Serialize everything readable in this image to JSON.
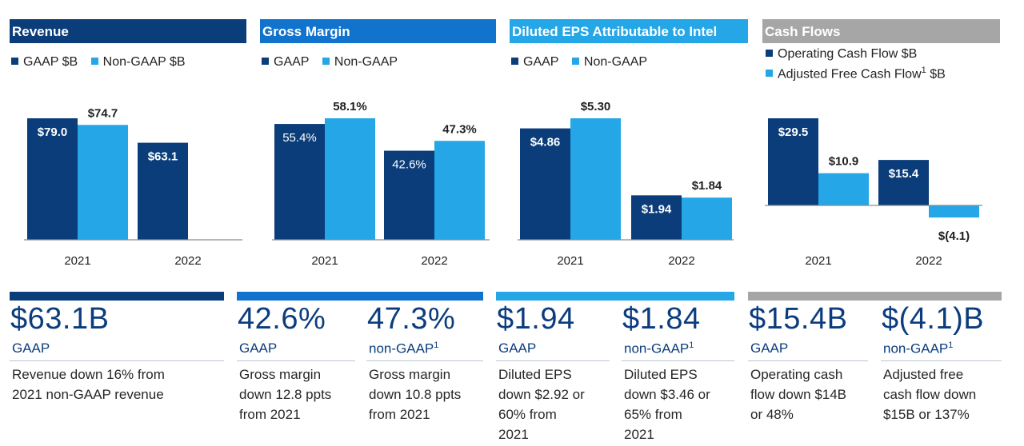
{
  "colors": {
    "gaap": "#0a3d7a",
    "nongaap": "#25a6e6",
    "header_revenue": "#0a3d7a",
    "header_margin": "#1273cc",
    "header_eps": "#25a6e6",
    "header_cash": "#a6a6a6",
    "axis": "#8c8c8c"
  },
  "panels": [
    {
      "header": "Revenue",
      "legend": [
        {
          "label": "GAAP $B"
        },
        {
          "label": "Non-GAAP $B"
        }
      ]
    },
    {
      "header": "Gross Margin",
      "legend": [
        {
          "label": "GAAP"
        },
        {
          "label": "Non-GAAP"
        }
      ]
    },
    {
      "header": "Diluted EPS Attributable to Intel",
      "legend": [
        {
          "label": "GAAP"
        },
        {
          "label": "Non-GAAP"
        }
      ]
    },
    {
      "header": "Cash Flows",
      "legend": [
        {
          "label": "Operating Cash Flow $B",
          "sup": ""
        },
        {
          "label": "Adjusted Free Cash Flow",
          "sup": "1",
          "suffix": " $B"
        }
      ]
    }
  ],
  "chart_data": [
    {
      "type": "bar",
      "title": "Revenue",
      "categories": [
        "2021",
        "2022"
      ],
      "series": [
        {
          "name": "GAAP $B",
          "values": [
            79.0,
            63.1
          ],
          "labels": [
            "$79.0",
            "$63.1"
          ]
        },
        {
          "name": "Non-GAAP $B",
          "values": [
            74.7,
            null
          ],
          "labels": [
            "$74.7",
            ""
          ]
        }
      ],
      "ylim": [
        0,
        85
      ]
    },
    {
      "type": "bar",
      "title": "Gross Margin",
      "categories": [
        "2021",
        "2022"
      ],
      "series": [
        {
          "name": "GAAP",
          "values": [
            55.4,
            42.6
          ],
          "labels": [
            "55.4%",
            "42.6%"
          ]
        },
        {
          "name": "Non-GAAP",
          "values": [
            58.1,
            47.3
          ],
          "labels": [
            "58.1%",
            "47.3%"
          ]
        }
      ],
      "ylim": [
        0,
        100
      ]
    },
    {
      "type": "bar",
      "title": "Diluted EPS Attributable to Intel",
      "categories": [
        "2021",
        "2022"
      ],
      "series": [
        {
          "name": "GAAP",
          "values": [
            4.86,
            1.94
          ],
          "labels": [
            "$4.86",
            "$1.94"
          ]
        },
        {
          "name": "Non-GAAP",
          "values": [
            5.3,
            1.84
          ],
          "labels": [
            "$5.30",
            "$1.84"
          ]
        }
      ],
      "ylim": [
        0,
        6
      ]
    },
    {
      "type": "bar",
      "title": "Cash Flows",
      "categories": [
        "2021",
        "2022"
      ],
      "series": [
        {
          "name": "Operating Cash Flow $B",
          "values": [
            29.5,
            15.4
          ],
          "labels": [
            "$29.5",
            "$15.4"
          ]
        },
        {
          "name": "Adjusted Free Cash Flow $B",
          "values": [
            10.9,
            -4.1
          ],
          "labels": [
            "$10.9",
            "$(4.1)"
          ]
        }
      ],
      "ylim": [
        -5,
        35
      ]
    }
  ],
  "summary": [
    {
      "value": "$63.1B",
      "label": "GAAP",
      "sup": "",
      "desc": [
        "Revenue down 16% from",
        "2021 non-GAAP revenue"
      ]
    },
    {
      "value": "42.6%",
      "label": "GAAP",
      "sup": "",
      "desc": [
        "Gross margin",
        "down 12.8 ppts",
        "from 2021"
      ]
    },
    {
      "value": "47.3%",
      "label": "non-GAAP",
      "sup": "1",
      "desc": [
        "Gross margin",
        "down 10.8 ppts",
        "from 2021"
      ]
    },
    {
      "value": "$1.94",
      "label": "GAAP",
      "sup": "",
      "desc": [
        "Diluted EPS",
        "down $2.92 or",
        "60% from",
        "2021"
      ]
    },
    {
      "value": "$1.84",
      "label": "non-GAAP",
      "sup": "1",
      "desc": [
        "Diluted EPS",
        "down $3.46 or",
        "65% from",
        "2021"
      ]
    },
    {
      "value": "$15.4B",
      "label": "GAAP",
      "sup": "",
      "desc": [
        "Operating cash",
        "flow down $14B",
        "or 48%"
      ]
    },
    {
      "value": "$(4.1)B",
      "label": "non-GAAP",
      "sup": "1",
      "desc": [
        "Adjusted free",
        "cash flow down",
        "$15B or 137%"
      ]
    }
  ]
}
